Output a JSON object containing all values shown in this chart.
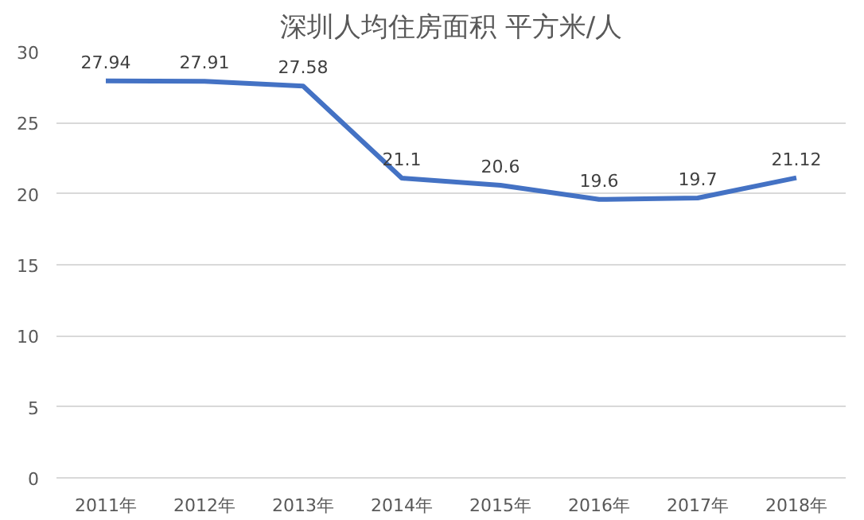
{
  "chart_data": {
    "type": "line",
    "title": "深圳人均住房面积 平方米/人",
    "categories": [
      "2011年",
      "2012年",
      "2013年",
      "2014年",
      "2015年",
      "2016年",
      "2017年",
      "2018年"
    ],
    "series": [
      {
        "color": "#4472c4",
        "values": [
          27.94,
          27.91,
          27.58,
          21.1,
          20.6,
          19.6,
          19.7,
          21.12
        ]
      }
    ],
    "ylim": [
      0,
      30
    ],
    "yticks": [
      0,
      5,
      10,
      15,
      20,
      25,
      30
    ],
    "grid": "y",
    "data_labels": true,
    "marker": "none",
    "line_style": "solid"
  }
}
